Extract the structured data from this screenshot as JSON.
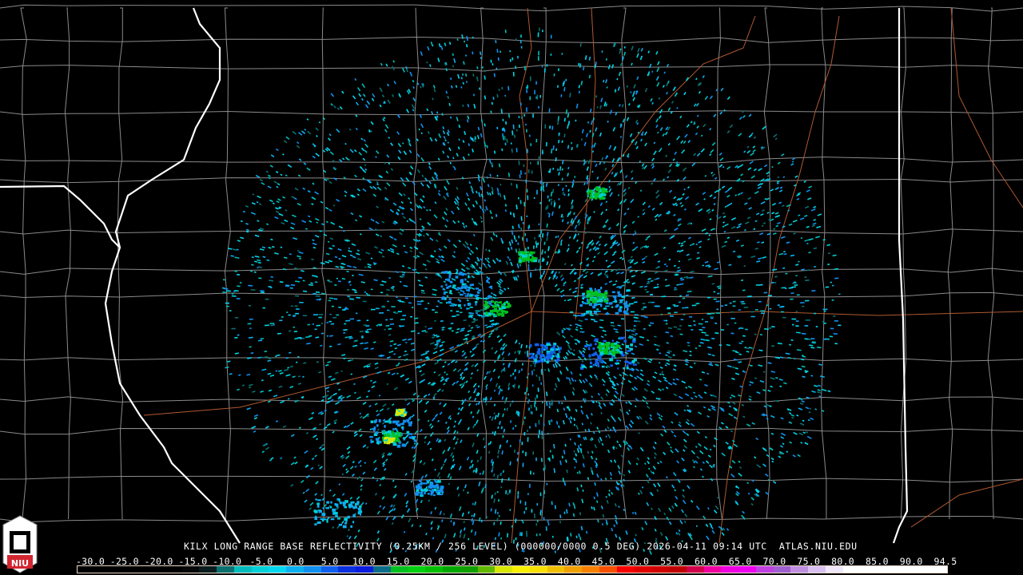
{
  "product": {
    "caption": "KILX LONG RANGE BASE REFLECTIVITY (0.25KM / 256 LEVEL) (000000/0000 0.5 DEG) 2026-04-11 09:14 UTC  ATLAS.NIU.EDU",
    "station": "KILX",
    "elevation_deg": "0.5",
    "datetime": "2026-04-11 09:14 UTC",
    "source": "ATLAS.NIU.EDU"
  },
  "logo": {
    "text": "NIU",
    "color": "#d22630"
  },
  "colorbar": {
    "labels": [
      "-30.0",
      "-25.0",
      "-20.0",
      "-15.0",
      "-10.0",
      "-5.0",
      "0.0",
      "5.0",
      "10.0",
      "15.0",
      "20.0",
      "25.0",
      "30.0",
      "35.0",
      "40.0",
      "45.0",
      "50.0",
      "55.0",
      "60.0",
      "65.0",
      "70.0",
      "75.0",
      "80.0",
      "85.0",
      "90.0",
      "94.5"
    ],
    "colors": [
      "#000000",
      "#000000",
      "#000000",
      "#000000",
      "#000000",
      "#000000",
      "#050808",
      "#0a1c1e",
      "#0a7070",
      "#00bcbc",
      "#00d0d8",
      "#00d8f0",
      "#0cb0f0",
      "#1090f0",
      "#1060f0",
      "#0830e0",
      "#0a1ce0",
      "#0a6e8a",
      "#00c020",
      "#00d010",
      "#00c000",
      "#00a800",
      "#10a000",
      "#60b800",
      "#d8e800",
      "#f8f000",
      "#f8e000",
      "#f0c000",
      "#f0a000",
      "#f88000",
      "#f85000",
      "#f80000",
      "#e00000",
      "#d00000",
      "#c00000",
      "#d0004a",
      "#f000a0",
      "#f000e0",
      "#f000f0",
      "#c040e0",
      "#a060d0",
      "#c090e0",
      "#d8c0f0",
      "#f0e8f8",
      "#ffffff",
      "#ffffff",
      "#ffffff",
      "#ffffff",
      "#ffffff",
      "#ffffff"
    ]
  },
  "map_colors": {
    "rivers": "#ffffff",
    "counties": "#808080",
    "roads": "#b05a30"
  }
}
